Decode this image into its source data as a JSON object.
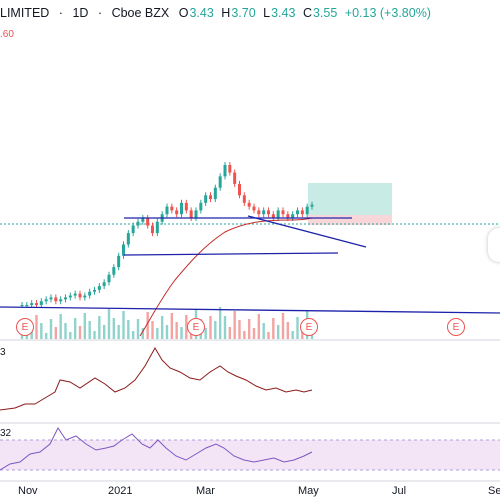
{
  "header": {
    "symbol_name": "LIMITED",
    "interval": "1D",
    "exchange": "Cboe BZX",
    "open_label": "O",
    "open_value": "3.43",
    "high_label": "H",
    "high_value": "3.70",
    "low_label": "L",
    "low_value": "3.43",
    "close_label": "C",
    "close_value": "3.55",
    "change": "+0.13 (+3.80%)"
  },
  "price_tag_partial": ".60",
  "indicator_labels": {
    "pane2": "3",
    "pane3": "32"
  },
  "xaxis": {
    "labels": [
      "Nov",
      "2021",
      "Mar",
      "May",
      "Jul",
      "Se"
    ]
  },
  "earnings_markers": [
    "E",
    "E",
    "E",
    "E"
  ],
  "colors": {
    "up": "#26a69a",
    "down": "#ef5350",
    "ma": "#c62828",
    "trendline": "#1e22aa",
    "rsi_line": "#7e57c2",
    "rsi_band": "#f3e5f5",
    "target_zone": "#c8ebe6",
    "stop_zone": "#f8d7da",
    "indicator_line": "#8b1a1a"
  },
  "chart_data": {
    "type": "candlestick",
    "last_close": 3.55,
    "candles_approx_closes": [
      0.9,
      0.9,
      0.95,
      0.9,
      1.0,
      1.05,
      1.1,
      1.0,
      1.05,
      1.1,
      1.15,
      1.2,
      1.1,
      1.15,
      1.25,
      1.3,
      1.4,
      1.5,
      1.7,
      1.9,
      2.2,
      2.5,
      2.8,
      3.0,
      3.1,
      3.2,
      3.0,
      2.8,
      3.1,
      3.3,
      3.5,
      3.4,
      3.3,
      3.6,
      3.4,
      3.2,
      3.4,
      3.6,
      3.8,
      3.7,
      4.0,
      4.3,
      4.6,
      4.4,
      4.1,
      3.8,
      3.6,
      3.5,
      3.4,
      3.3,
      3.4,
      3.3,
      3.2,
      3.4,
      3.3,
      3.2,
      3.3,
      3.4,
      3.3,
      3.5,
      3.55
    ]
  }
}
